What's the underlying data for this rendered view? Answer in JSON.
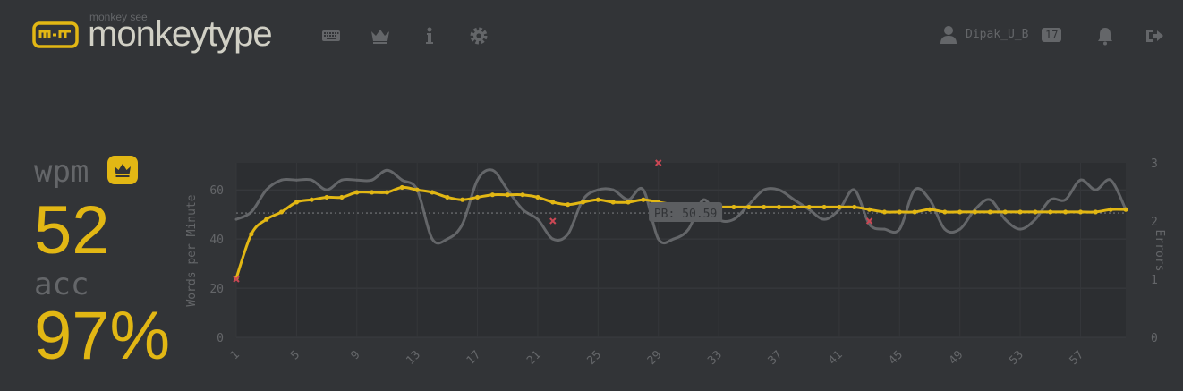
{
  "header": {
    "logo_small": "monkey see",
    "logo_text": "monkeytype",
    "nav": [
      "keyboard-icon",
      "crown-icon",
      "info-icon",
      "gear-icon"
    ],
    "account": {
      "username": "Dipak_U_B",
      "level": "17"
    }
  },
  "result": {
    "wpm_label": "wpm",
    "wpm_value": "52",
    "acc_label": "acc",
    "acc_value": "97%"
  },
  "colors": {
    "bg": "#323437",
    "main": "#e2b714",
    "sub": "#646669",
    "text": "#d1d0c5",
    "error": "#ca4754"
  },
  "chart_data": {
    "type": "line",
    "y_label": "Words per Minute",
    "y2_label": "Errors",
    "y_ticks": [
      "0",
      "20",
      "40",
      "60"
    ],
    "y2_ticks": [
      "0",
      "1",
      "2",
      "3"
    ],
    "x_ticks": [
      "1",
      "5",
      "9",
      "13",
      "17",
      "21",
      "25",
      "29",
      "33",
      "37",
      "41",
      "45",
      "49",
      "53",
      "57"
    ],
    "ylim": [
      0,
      71
    ],
    "y2lim": [
      0,
      3
    ],
    "xlim": [
      1,
      60
    ],
    "pb_value": 50.59,
    "pb_label": "PB: 50.59",
    "x": [
      1,
      2,
      3,
      4,
      5,
      6,
      7,
      8,
      9,
      10,
      11,
      12,
      13,
      14,
      15,
      16,
      17,
      18,
      19,
      20,
      21,
      22,
      23,
      24,
      25,
      26,
      27,
      28,
      29,
      30,
      31,
      32,
      33,
      34,
      35,
      36,
      37,
      38,
      39,
      40,
      41,
      42,
      43,
      44,
      45,
      46,
      47,
      48,
      49,
      50,
      51,
      52,
      53,
      54,
      55,
      56,
      57,
      58,
      59,
      60
    ],
    "series": [
      {
        "role": "wpm",
        "color": "#e2b714",
        "values": [
          24,
          42,
          48,
          51,
          55,
          56,
          57,
          57,
          59,
          59,
          59,
          61,
          60,
          59,
          57,
          56,
          57,
          58,
          58,
          58,
          57,
          55,
          54,
          55,
          56,
          55,
          55,
          56,
          55,
          54,
          53,
          53,
          53,
          53,
          53,
          53,
          53,
          53,
          53,
          53,
          53,
          53,
          52,
          51,
          51,
          51,
          52,
          51,
          51,
          51,
          51,
          51,
          51,
          51,
          51,
          51,
          51,
          51,
          52,
          52
        ]
      },
      {
        "role": "raw",
        "color": "#646669",
        "values": [
          48,
          51,
          60,
          64,
          64,
          64,
          60,
          64,
          64,
          64,
          68,
          64,
          60,
          40,
          40,
          46,
          64,
          68,
          60,
          52,
          48,
          40,
          42,
          56,
          60,
          60,
          56,
          60,
          40,
          40,
          44,
          56,
          48,
          48,
          54,
          60,
          60,
          56,
          52,
          48,
          52,
          60,
          46,
          44,
          44,
          60,
          56,
          44,
          44,
          52,
          56,
          48,
          44,
          48,
          56,
          56,
          64,
          60,
          64,
          52
        ]
      }
    ],
    "errors": [
      {
        "x": 1,
        "y": 1
      },
      {
        "x": 22,
        "y": 2
      },
      {
        "x": 29,
        "y": 3
      },
      {
        "x": 43,
        "y": 2
      }
    ]
  }
}
